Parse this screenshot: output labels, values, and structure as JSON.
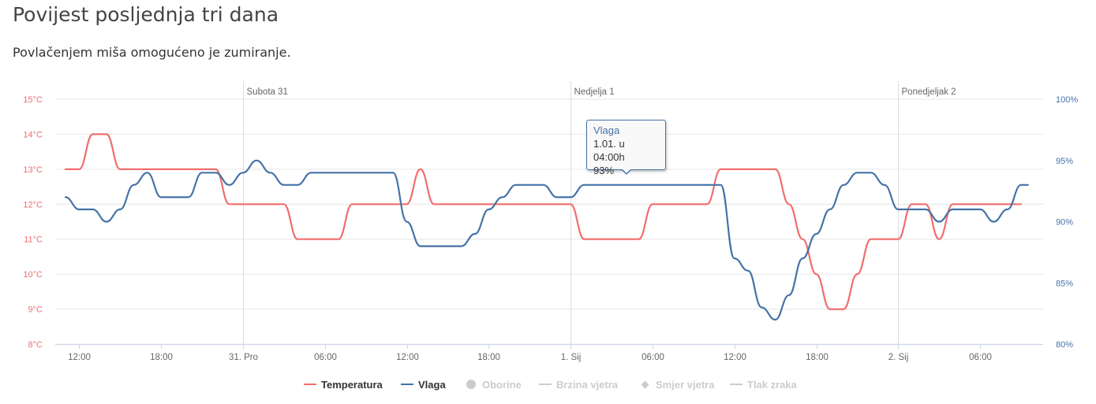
{
  "page": {
    "title": "Povijest posljednja tri dana",
    "subtitle": "Povlačenjem miša omogućeno je zumiranje."
  },
  "colors": {
    "temperature": "#f26d6d",
    "humidity": "#4572a7",
    "grid": "#e6e6e6",
    "axis_text": "#666666",
    "legend_disabled": "#cccccc"
  },
  "tooltip": {
    "series": "Vlaga",
    "time": "1.01. u 04:00h",
    "value": "93%"
  },
  "legend": [
    {
      "label": "Temperatura",
      "symbol": "line",
      "color": "#f26d6d",
      "enabled": true
    },
    {
      "label": "Vlaga",
      "symbol": "line",
      "color": "#4572a7",
      "enabled": true
    },
    {
      "label": "Oborine",
      "symbol": "circle",
      "color": "#cccccc",
      "enabled": false
    },
    {
      "label": "Brzina vjetra",
      "symbol": "line",
      "color": "#cccccc",
      "enabled": false
    },
    {
      "label": "Smjer vjetra",
      "symbol": "diamond",
      "color": "#cccccc",
      "enabled": false
    },
    {
      "label": "Tlak zraka",
      "symbol": "line",
      "color": "#cccccc",
      "enabled": false
    }
  ],
  "chart_data": {
    "type": "line",
    "x_unit": "hours",
    "x_range": [
      0,
      70.2
    ],
    "x_ticks": [
      {
        "x": 1,
        "label": "12:00"
      },
      {
        "x": 7,
        "label": "18:00"
      },
      {
        "x": 13,
        "label": "31. Pro"
      },
      {
        "x": 19,
        "label": "06:00"
      },
      {
        "x": 25,
        "label": "12:00"
      },
      {
        "x": 31,
        "label": "18:00"
      },
      {
        "x": 37,
        "label": "1. Sij"
      },
      {
        "x": 43,
        "label": "06:00"
      },
      {
        "x": 49,
        "label": "12:00"
      },
      {
        "x": 55,
        "label": "18:00"
      },
      {
        "x": 61,
        "label": "2. Sij"
      },
      {
        "x": 67,
        "label": "06:00"
      }
    ],
    "day_bands": [
      {
        "x": 13,
        "label": "Subota 31"
      },
      {
        "x": 37,
        "label": "Nedjelja 1"
      },
      {
        "x": 61,
        "label": "Ponedjeljak 2"
      }
    ],
    "y_left": {
      "min": 8,
      "max": 15,
      "unit": "°C",
      "ticks": [
        "8°C",
        "9°C",
        "10°C",
        "11°C",
        "12°C",
        "13°C",
        "14°C",
        "15°C"
      ]
    },
    "y_right": {
      "min": 80,
      "max": 100,
      "unit": "%",
      "ticks": [
        "80%",
        "85%",
        "90%",
        "95%",
        "100%"
      ]
    },
    "series": [
      {
        "name": "Temperatura",
        "axis": "left",
        "color": "#f26d6d",
        "points": [
          [
            0,
            13
          ],
          [
            1,
            13
          ],
          [
            2,
            14
          ],
          [
            3,
            14
          ],
          [
            4,
            13
          ],
          [
            5,
            13
          ],
          [
            6,
            13
          ],
          [
            7,
            13
          ],
          [
            8,
            13
          ],
          [
            9,
            13
          ],
          [
            10,
            13
          ],
          [
            11,
            13
          ],
          [
            12,
            12
          ],
          [
            13,
            12
          ],
          [
            14,
            12
          ],
          [
            15,
            12
          ],
          [
            16,
            12
          ],
          [
            17,
            11
          ],
          [
            18,
            11
          ],
          [
            19,
            11
          ],
          [
            20,
            11
          ],
          [
            21,
            12
          ],
          [
            22,
            12
          ],
          [
            23,
            12
          ],
          [
            24,
            12
          ],
          [
            25,
            12
          ],
          [
            26,
            13
          ],
          [
            27,
            12
          ],
          [
            28,
            12
          ],
          [
            29,
            12
          ],
          [
            30,
            12
          ],
          [
            31,
            12
          ],
          [
            32,
            12
          ],
          [
            33,
            12
          ],
          [
            34,
            12
          ],
          [
            35,
            12
          ],
          [
            36,
            12
          ],
          [
            37,
            12
          ],
          [
            38,
            11
          ],
          [
            39,
            11
          ],
          [
            40,
            11
          ],
          [
            41,
            11
          ],
          [
            42,
            11
          ],
          [
            43,
            12
          ],
          [
            44,
            12
          ],
          [
            45,
            12
          ],
          [
            46,
            12
          ],
          [
            47,
            12
          ],
          [
            48,
            13
          ],
          [
            49,
            13
          ],
          [
            50,
            13
          ],
          [
            51,
            13
          ],
          [
            52,
            13
          ],
          [
            53,
            12
          ],
          [
            54,
            11
          ],
          [
            55,
            10
          ],
          [
            56,
            9
          ],
          [
            57,
            9
          ],
          [
            58,
            10
          ],
          [
            59,
            11
          ],
          [
            60,
            11
          ],
          [
            61,
            11
          ],
          [
            62,
            12
          ],
          [
            63,
            12
          ],
          [
            64,
            11
          ],
          [
            65,
            12
          ],
          [
            66,
            12
          ],
          [
            67,
            12
          ],
          [
            68,
            12
          ],
          [
            69,
            12
          ],
          [
            70,
            12
          ]
        ]
      },
      {
        "name": "Vlaga",
        "axis": "right",
        "color": "#4572a7",
        "points": [
          [
            0,
            92
          ],
          [
            1,
            91
          ],
          [
            2,
            91
          ],
          [
            3,
            90
          ],
          [
            4,
            91
          ],
          [
            5,
            93
          ],
          [
            6,
            94
          ],
          [
            7,
            92
          ],
          [
            8,
            92
          ],
          [
            9,
            92
          ],
          [
            10,
            94
          ],
          [
            11,
            94
          ],
          [
            12,
            93
          ],
          [
            13,
            94
          ],
          [
            14,
            95
          ],
          [
            15,
            94
          ],
          [
            16,
            93
          ],
          [
            17,
            93
          ],
          [
            18,
            94
          ],
          [
            19,
            94
          ],
          [
            20,
            94
          ],
          [
            21,
            94
          ],
          [
            22,
            94
          ],
          [
            23,
            94
          ],
          [
            24,
            94
          ],
          [
            25,
            90
          ],
          [
            26,
            88
          ],
          [
            27,
            88
          ],
          [
            28,
            88
          ],
          [
            29,
            88
          ],
          [
            30,
            89
          ],
          [
            31,
            91
          ],
          [
            32,
            92
          ],
          [
            33,
            93
          ],
          [
            34,
            93
          ],
          [
            35,
            93
          ],
          [
            36,
            92
          ],
          [
            37,
            92
          ],
          [
            38,
            93
          ],
          [
            39,
            93
          ],
          [
            40,
            93
          ],
          [
            41,
            93
          ],
          [
            42,
            93
          ],
          [
            43,
            93
          ],
          [
            44,
            93
          ],
          [
            45,
            93
          ],
          [
            46,
            93
          ],
          [
            47,
            93
          ],
          [
            48,
            93
          ],
          [
            49,
            87
          ],
          [
            50,
            86
          ],
          [
            51,
            83
          ],
          [
            52,
            82
          ],
          [
            53,
            84
          ],
          [
            54,
            87
          ],
          [
            55,
            89
          ],
          [
            56,
            91
          ],
          [
            57,
            93
          ],
          [
            58,
            94
          ],
          [
            59,
            94
          ],
          [
            60,
            93
          ],
          [
            61,
            91
          ],
          [
            62,
            91
          ],
          [
            63,
            91
          ],
          [
            64,
            90
          ],
          [
            65,
            91
          ],
          [
            66,
            91
          ],
          [
            67,
            91
          ],
          [
            68,
            90
          ],
          [
            69,
            91
          ],
          [
            70,
            93
          ],
          [
            70.5,
            93
          ]
        ]
      }
    ]
  }
}
